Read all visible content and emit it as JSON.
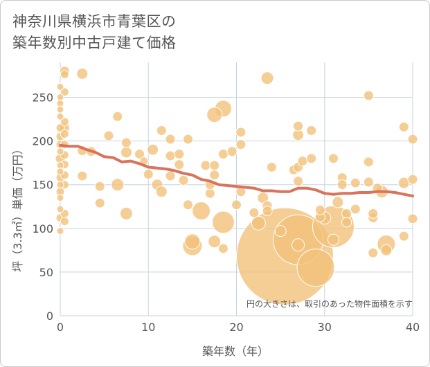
{
  "title": {
    "line1": "神奈川県横浜市青葉区の",
    "line2": "築年数別中古戸建て価格"
  },
  "note": "円の大きさは、取引のあった物件面積を示す",
  "colors": {
    "bubble_fill": "#f2c27b",
    "bubble_stroke": "#ffffff",
    "trend": "#d9735c",
    "grid": "#c8d3e0",
    "plot_bg": "#ffffff"
  },
  "chart_data": {
    "type": "scatter",
    "title": "神奈川県横浜市青葉区の築年数別中古戸建て価格",
    "xlabel": "築年数（年）",
    "ylabel": "坪（3.3㎡）単価（万円）",
    "xlim": [
      0,
      40
    ],
    "ylim": [
      0,
      290
    ],
    "xticks": [
      0,
      10,
      20,
      30,
      40
    ],
    "yticks": [
      0,
      50,
      100,
      150,
      200,
      250
    ],
    "grid": true,
    "size_legend": "円の大きさは、取引のあった物件面積を示す",
    "bubbles": [
      {
        "x": 0,
        "y": 262,
        "s": 5
      },
      {
        "x": 0,
        "y": 250,
        "s": 5
      },
      {
        "x": 0,
        "y": 243,
        "s": 5
      },
      {
        "x": 0,
        "y": 236,
        "s": 5
      },
      {
        "x": 0,
        "y": 228,
        "s": 5
      },
      {
        "x": 0,
        "y": 215,
        "s": 6
      },
      {
        "x": 0,
        "y": 205,
        "s": 6
      },
      {
        "x": 0,
        "y": 196,
        "s": 6
      },
      {
        "x": 0,
        "y": 188,
        "s": 5
      },
      {
        "x": 0,
        "y": 180,
        "s": 7
      },
      {
        "x": 0,
        "y": 172,
        "s": 5
      },
      {
        "x": 0,
        "y": 165,
        "s": 5
      },
      {
        "x": 0,
        "y": 158,
        "s": 6
      },
      {
        "x": 0,
        "y": 150,
        "s": 5
      },
      {
        "x": 0,
        "y": 142,
        "s": 6
      },
      {
        "x": 0,
        "y": 135,
        "s": 5
      },
      {
        "x": 0,
        "y": 122,
        "s": 5
      },
      {
        "x": 0,
        "y": 112,
        "s": 6
      },
      {
        "x": 0,
        "y": 97,
        "s": 5
      },
      {
        "x": 0.5,
        "y": 280,
        "s": 7
      },
      {
        "x": 0.5,
        "y": 276,
        "s": 6
      },
      {
        "x": 0.5,
        "y": 256,
        "s": 6
      },
      {
        "x": 0.5,
        "y": 222,
        "s": 6
      },
      {
        "x": 0.5,
        "y": 215,
        "s": 7
      },
      {
        "x": 0.5,
        "y": 208,
        "s": 6
      },
      {
        "x": 0.5,
        "y": 196,
        "s": 6
      },
      {
        "x": 0.5,
        "y": 184,
        "s": 6
      },
      {
        "x": 0.5,
        "y": 173,
        "s": 6
      },
      {
        "x": 0.5,
        "y": 161,
        "s": 6
      },
      {
        "x": 0.5,
        "y": 150,
        "s": 6
      },
      {
        "x": 0.5,
        "y": 117,
        "s": 6
      },
      {
        "x": 0.5,
        "y": 108,
        "s": 6
      },
      {
        "x": 2.5,
        "y": 277,
        "s": 8
      },
      {
        "x": 2.5,
        "y": 189,
        "s": 7
      },
      {
        "x": 2.5,
        "y": 160,
        "s": 7
      },
      {
        "x": 3.5,
        "y": 188,
        "s": 7
      },
      {
        "x": 4.5,
        "y": 148,
        "s": 7
      },
      {
        "x": 4.5,
        "y": 129,
        "s": 7
      },
      {
        "x": 5.5,
        "y": 206,
        "s": 7
      },
      {
        "x": 6.5,
        "y": 228,
        "s": 7
      },
      {
        "x": 6.5,
        "y": 150,
        "s": 9
      },
      {
        "x": 7.5,
        "y": 198,
        "s": 7
      },
      {
        "x": 7.5,
        "y": 187,
        "s": 8
      },
      {
        "x": 7.5,
        "y": 117,
        "s": 9
      },
      {
        "x": 9,
        "y": 185,
        "s": 7
      },
      {
        "x": 9.5,
        "y": 177,
        "s": 6
      },
      {
        "x": 10,
        "y": 162,
        "s": 7
      },
      {
        "x": 10.5,
        "y": 190,
        "s": 8
      },
      {
        "x": 11,
        "y": 150,
        "s": 8
      },
      {
        "x": 11.5,
        "y": 212,
        "s": 7
      },
      {
        "x": 11.5,
        "y": 142,
        "s": 8
      },
      {
        "x": 12.5,
        "y": 202,
        "s": 7
      },
      {
        "x": 12.5,
        "y": 183,
        "s": 7
      },
      {
        "x": 12.5,
        "y": 160,
        "s": 7
      },
      {
        "x": 13.5,
        "y": 185,
        "s": 7
      },
      {
        "x": 13.5,
        "y": 173,
        "s": 7
      },
      {
        "x": 14,
        "y": 155,
        "s": 7
      },
      {
        "x": 14.5,
        "y": 202,
        "s": 7
      },
      {
        "x": 14.5,
        "y": 127,
        "s": 7
      },
      {
        "x": 15,
        "y": 85,
        "s": 11
      },
      {
        "x": 15,
        "y": 80,
        "s": 14
      },
      {
        "x": 16,
        "y": 120,
        "s": 13
      },
      {
        "x": 16.5,
        "y": 172,
        "s": 7
      },
      {
        "x": 17,
        "y": 140,
        "s": 7
      },
      {
        "x": 17,
        "y": 150,
        "s": 7
      },
      {
        "x": 17.5,
        "y": 230,
        "s": 11
      },
      {
        "x": 17.5,
        "y": 172,
        "s": 7
      },
      {
        "x": 17.5,
        "y": 161,
        "s": 7
      },
      {
        "x": 17.5,
        "y": 85,
        "s": 9
      },
      {
        "x": 18.5,
        "y": 237,
        "s": 12
      },
      {
        "x": 18.5,
        "y": 185,
        "s": 7
      },
      {
        "x": 18.5,
        "y": 107,
        "s": 16
      },
      {
        "x": 18.5,
        "y": 77,
        "s": 7
      },
      {
        "x": 19.5,
        "y": 188,
        "s": 7
      },
      {
        "x": 20,
        "y": 127,
        "s": 7
      },
      {
        "x": 20.5,
        "y": 210,
        "s": 7
      },
      {
        "x": 20.5,
        "y": 196,
        "s": 7
      },
      {
        "x": 20.5,
        "y": 142,
        "s": 7
      },
      {
        "x": 22,
        "y": 118,
        "s": 7
      },
      {
        "x": 22.5,
        "y": 106,
        "s": 10
      },
      {
        "x": 23,
        "y": 135,
        "s": 8
      },
      {
        "x": 23.5,
        "y": 272,
        "s": 9
      },
      {
        "x": 23.5,
        "y": 126,
        "s": 7
      },
      {
        "x": 23.5,
        "y": 120,
        "s": 7
      },
      {
        "x": 24,
        "y": 170,
        "s": 7
      },
      {
        "x": 25,
        "y": 97,
        "s": 8
      },
      {
        "x": 25.5,
        "y": 68,
        "s": 70
      },
      {
        "x": 26.5,
        "y": 167,
        "s": 7
      },
      {
        "x": 27,
        "y": 87,
        "s": 36
      },
      {
        "x": 27,
        "y": 217,
        "s": 7
      },
      {
        "x": 27,
        "y": 207,
        "s": 8
      },
      {
        "x": 27,
        "y": 170,
        "s": 7
      },
      {
        "x": 27,
        "y": 154,
        "s": 7
      },
      {
        "x": 27,
        "y": 81,
        "s": 9
      },
      {
        "x": 27.5,
        "y": 177,
        "s": 7
      },
      {
        "x": 28.5,
        "y": 212,
        "s": 7
      },
      {
        "x": 28.5,
        "y": 180,
        "s": 7
      },
      {
        "x": 29,
        "y": 55,
        "s": 27
      },
      {
        "x": 29.5,
        "y": 113,
        "s": 7
      },
      {
        "x": 29.5,
        "y": 121,
        "s": 7
      },
      {
        "x": 30,
        "y": 112,
        "s": 9
      },
      {
        "x": 31,
        "y": 102,
        "s": 30
      },
      {
        "x": 31,
        "y": 180,
        "s": 7
      },
      {
        "x": 31,
        "y": 87,
        "s": 8
      },
      {
        "x": 31.5,
        "y": 130,
        "s": 8
      },
      {
        "x": 32,
        "y": 158,
        "s": 7
      },
      {
        "x": 32,
        "y": 150,
        "s": 7
      },
      {
        "x": 32.5,
        "y": 117,
        "s": 7
      },
      {
        "x": 32.5,
        "y": 107,
        "s": 7
      },
      {
        "x": 33.5,
        "y": 152,
        "s": 7
      },
      {
        "x": 33.5,
        "y": 122,
        "s": 7
      },
      {
        "x": 35,
        "y": 252,
        "s": 7
      },
      {
        "x": 35,
        "y": 176,
        "s": 7
      },
      {
        "x": 35,
        "y": 153,
        "s": 7
      },
      {
        "x": 35.5,
        "y": 112,
        "s": 7
      },
      {
        "x": 35.5,
        "y": 72,
        "s": 7
      },
      {
        "x": 35.5,
        "y": 117,
        "s": 7
      },
      {
        "x": 36,
        "y": 146,
        "s": 7
      },
      {
        "x": 36.5,
        "y": 142,
        "s": 9
      },
      {
        "x": 37,
        "y": 82,
        "s": 13
      },
      {
        "x": 37,
        "y": 75,
        "s": 8
      },
      {
        "x": 39,
        "y": 216,
        "s": 7
      },
      {
        "x": 39,
        "y": 152,
        "s": 8
      },
      {
        "x": 39,
        "y": 91,
        "s": 7
      },
      {
        "x": 40,
        "y": 202,
        "s": 7
      },
      {
        "x": 40,
        "y": 156,
        "s": 7
      },
      {
        "x": 40,
        "y": 111,
        "s": 7
      }
    ],
    "trend": {
      "x": [
        0,
        1,
        2,
        3,
        4,
        5,
        6,
        7,
        8,
        9,
        10,
        11,
        12,
        13,
        14,
        15,
        16,
        17,
        18,
        19,
        20,
        21,
        22,
        23,
        24,
        25,
        26,
        27,
        28,
        29,
        30,
        31,
        32,
        33,
        34,
        35,
        36,
        37,
        38,
        39,
        40
      ],
      "y": [
        195,
        194,
        194,
        190,
        187,
        182,
        181,
        176,
        177,
        174,
        170,
        169,
        168,
        166,
        163,
        161,
        156,
        154,
        150,
        149,
        148,
        147,
        146,
        143,
        143,
        142,
        142,
        146,
        146,
        144,
        140,
        139,
        140,
        140,
        141,
        141,
        142,
        142,
        141,
        139,
        137
      ]
    }
  }
}
